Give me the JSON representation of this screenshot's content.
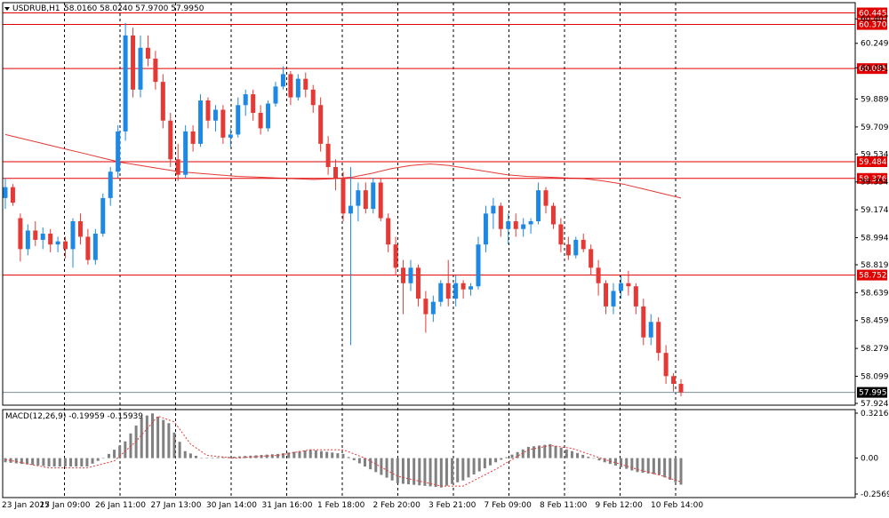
{
  "window": {
    "symbol_label": "USDRUB,H1",
    "ohlc": "58.0160 58.0240 57.9700 57.9950",
    "macd_label": "MACD(12,26,9) -0.19959 -0.15939"
  },
  "chart_data": {
    "type": "candlestick",
    "symbol": "USDRUB",
    "timeframe": "H1",
    "price_axis": {
      "range": [
        57.924,
        60.5
      ],
      "ticks": [
        "60.4070",
        "60.2490",
        "60.0910",
        "59.8890",
        "59.7090",
        "59.5340",
        "59.3540",
        "59.1740",
        "58.9940",
        "58.8190",
        "58.6390",
        "58.4590",
        "58.2790",
        "58.0990",
        "57.9240"
      ]
    },
    "horizontal_levels": [
      {
        "value": 60.4454,
        "label": "60.4454",
        "color": "#e00000"
      },
      {
        "value": 60.3706,
        "label": "60.3706",
        "color": "#e00000"
      },
      {
        "value": 60.0859,
        "label": "60.0859",
        "color": "#e00000"
      },
      {
        "value": 59.4845,
        "label": "59.4845",
        "color": "#e00000"
      },
      {
        "value": 59.3767,
        "label": "59.3767",
        "color": "#e00000"
      },
      {
        "value": 58.7526,
        "label": "58.7526",
        "color": "#e00000"
      }
    ],
    "current_price": {
      "value": 57.995,
      "label": "57.9950",
      "color": "#000000"
    },
    "time_labels": [
      "23 Jan 2017",
      "25 Jan 09:00",
      "26 Jan 11:00",
      "27 Jan 13:00",
      "30 Jan 14:00",
      "31 Jan 16:00",
      "1 Feb 18:00",
      "2 Feb 20:00",
      "3 Feb 21:00",
      "7 Feb 09:00",
      "8 Feb 11:00",
      "9 Feb 12:00",
      "10 Feb 14:00"
    ],
    "colors": {
      "up": "#1e88e5",
      "down": "#e53935",
      "ma": "#e53935",
      "macd_hist": "#808080",
      "macd_signal": "#e53935"
    },
    "moving_average": [
      59.66,
      59.63,
      59.6,
      59.57,
      59.54,
      59.51,
      59.48,
      59.46,
      59.44,
      59.42,
      59.41,
      59.4,
      59.39,
      59.385,
      59.38,
      59.375,
      59.37,
      59.375,
      59.385,
      59.41,
      59.44,
      59.46,
      59.47,
      59.46,
      59.44,
      59.42,
      59.4,
      59.39,
      59.385,
      59.38,
      59.375,
      59.36,
      59.34,
      59.31,
      59.28,
      59.25
    ],
    "macd": {
      "zero_line": 0.0,
      "range": [
        -0.2569,
        0.3217
      ],
      "ticks": [
        "0.32169",
        "0.00",
        "-0.25693"
      ],
      "histogram_points": [
        [
          0,
          -0.03
        ],
        [
          8,
          -0.06
        ],
        [
          15,
          -0.06
        ],
        [
          18,
          0.0
        ],
        [
          22,
          0.12
        ],
        [
          25,
          0.29
        ],
        [
          27,
          0.32
        ],
        [
          30,
          0.25
        ],
        [
          33,
          0.05
        ],
        [
          36,
          0.0
        ],
        [
          42,
          0.01
        ],
        [
          50,
          0.03
        ],
        [
          56,
          0.06
        ],
        [
          62,
          0.03
        ],
        [
          66,
          -0.06
        ],
        [
          72,
          -0.18
        ],
        [
          80,
          -0.21
        ],
        [
          84,
          -0.16
        ],
        [
          90,
          -0.03
        ],
        [
          96,
          0.08
        ],
        [
          100,
          0.1
        ],
        [
          104,
          0.05
        ],
        [
          110,
          -0.03
        ],
        [
          116,
          -0.1
        ],
        [
          120,
          -0.12
        ],
        [
          124,
          -0.19
        ]
      ],
      "signal_points": [
        [
          0,
          -0.01
        ],
        [
          8,
          -0.07
        ],
        [
          15,
          -0.07
        ],
        [
          20,
          -0.02
        ],
        [
          24,
          0.12
        ],
        [
          28,
          0.3
        ],
        [
          31,
          0.26
        ],
        [
          34,
          0.1
        ],
        [
          37,
          0.02
        ],
        [
          42,
          0.0
        ],
        [
          50,
          0.02
        ],
        [
          56,
          0.06
        ],
        [
          62,
          0.06
        ],
        [
          66,
          0.0
        ],
        [
          72,
          -0.13
        ],
        [
          80,
          -0.2
        ],
        [
          84,
          -0.2
        ],
        [
          90,
          -0.08
        ],
        [
          96,
          0.06
        ],
        [
          100,
          0.09
        ],
        [
          104,
          0.07
        ],
        [
          110,
          -0.01
        ],
        [
          116,
          -0.08
        ],
        [
          120,
          -0.12
        ],
        [
          124,
          -0.17
        ]
      ]
    },
    "candles": [
      {
        "o": 59.25,
        "h": 59.38,
        "l": 59.18,
        "c": 59.32
      },
      {
        "o": 59.32,
        "h": 59.34,
        "l": 59.2,
        "c": 59.22
      },
      {
        "o": 59.12,
        "h": 59.15,
        "l": 58.84,
        "c": 58.92
      },
      {
        "o": 58.92,
        "h": 59.08,
        "l": 58.88,
        "c": 59.04
      },
      {
        "o": 59.04,
        "h": 59.1,
        "l": 58.94,
        "c": 58.98
      },
      {
        "o": 58.98,
        "h": 59.06,
        "l": 58.92,
        "c": 59.02
      },
      {
        "o": 59.02,
        "h": 59.05,
        "l": 58.9,
        "c": 58.95
      },
      {
        "o": 58.95,
        "h": 59.0,
        "l": 58.9,
        "c": 58.97
      },
      {
        "o": 58.97,
        "h": 59.0,
        "l": 58.86,
        "c": 58.92
      },
      {
        "o": 58.92,
        "h": 59.12,
        "l": 58.8,
        "c": 59.1
      },
      {
        "o": 59.1,
        "h": 59.15,
        "l": 58.95,
        "c": 59.0
      },
      {
        "o": 59.0,
        "h": 59.05,
        "l": 58.82,
        "c": 58.85
      },
      {
        "o": 58.85,
        "h": 59.05,
        "l": 58.82,
        "c": 59.02
      },
      {
        "o": 59.02,
        "h": 59.28,
        "l": 59.0,
        "c": 59.25
      },
      {
        "o": 59.25,
        "h": 59.45,
        "l": 59.2,
        "c": 59.42
      },
      {
        "o": 59.42,
        "h": 59.72,
        "l": 59.38,
        "c": 59.68
      },
      {
        "o": 59.68,
        "h": 60.38,
        "l": 59.62,
        "c": 60.3
      },
      {
        "o": 60.3,
        "h": 60.35,
        "l": 59.9,
        "c": 59.95
      },
      {
        "o": 59.95,
        "h": 60.3,
        "l": 59.9,
        "c": 60.22
      },
      {
        "o": 60.22,
        "h": 60.3,
        "l": 60.1,
        "c": 60.15
      },
      {
        "o": 60.15,
        "h": 60.2,
        "l": 59.95,
        "c": 60.0
      },
      {
        "o": 60.0,
        "h": 60.05,
        "l": 59.7,
        "c": 59.75
      },
      {
        "o": 59.75,
        "h": 59.8,
        "l": 59.45,
        "c": 59.5
      },
      {
        "o": 59.5,
        "h": 59.6,
        "l": 59.36,
        "c": 59.4
      },
      {
        "o": 59.4,
        "h": 59.72,
        "l": 59.38,
        "c": 59.68
      },
      {
        "o": 59.68,
        "h": 59.72,
        "l": 59.55,
        "c": 59.6
      },
      {
        "o": 59.6,
        "h": 59.92,
        "l": 59.58,
        "c": 59.88
      },
      {
        "o": 59.88,
        "h": 59.9,
        "l": 59.7,
        "c": 59.75
      },
      {
        "o": 59.75,
        "h": 59.85,
        "l": 59.68,
        "c": 59.82
      },
      {
        "o": 59.82,
        "h": 59.85,
        "l": 59.6,
        "c": 59.64
      },
      {
        "o": 59.64,
        "h": 59.7,
        "l": 59.58,
        "c": 59.66
      },
      {
        "o": 59.66,
        "h": 59.9,
        "l": 59.64,
        "c": 59.85
      },
      {
        "o": 59.85,
        "h": 59.95,
        "l": 59.78,
        "c": 59.92
      },
      {
        "o": 59.92,
        "h": 59.95,
        "l": 59.75,
        "c": 59.8
      },
      {
        "o": 59.8,
        "h": 59.85,
        "l": 59.66,
        "c": 59.7
      },
      {
        "o": 59.7,
        "h": 59.88,
        "l": 59.68,
        "c": 59.86
      },
      {
        "o": 59.86,
        "h": 60.0,
        "l": 59.84,
        "c": 59.97
      },
      {
        "o": 59.97,
        "h": 60.1,
        "l": 59.95,
        "c": 60.05
      },
      {
        "o": 60.05,
        "h": 60.07,
        "l": 59.85,
        "c": 59.9
      },
      {
        "o": 59.9,
        "h": 60.05,
        "l": 59.88,
        "c": 60.02
      },
      {
        "o": 60.02,
        "h": 60.06,
        "l": 59.9,
        "c": 59.95
      },
      {
        "o": 59.95,
        "h": 59.98,
        "l": 59.8,
        "c": 59.85
      },
      {
        "o": 59.85,
        "h": 59.9,
        "l": 59.55,
        "c": 59.6
      },
      {
        "o": 59.6,
        "h": 59.65,
        "l": 59.4,
        "c": 59.45
      },
      {
        "o": 59.45,
        "h": 59.5,
        "l": 59.3,
        "c": 59.38
      },
      {
        "o": 59.38,
        "h": 59.42,
        "l": 59.1,
        "c": 59.15
      },
      {
        "o": 59.15,
        "h": 59.45,
        "l": 58.3,
        "c": 59.2
      },
      {
        "o": 59.2,
        "h": 59.35,
        "l": 59.1,
        "c": 59.3
      },
      {
        "o": 59.3,
        "h": 59.35,
        "l": 59.15,
        "c": 59.18
      },
      {
        "o": 59.18,
        "h": 59.38,
        "l": 59.15,
        "c": 59.35
      },
      {
        "o": 59.35,
        "h": 59.38,
        "l": 59.1,
        "c": 59.12
      },
      {
        "o": 59.12,
        "h": 59.15,
        "l": 58.9,
        "c": 58.95
      },
      {
        "o": 58.95,
        "h": 59.0,
        "l": 58.75,
        "c": 58.8
      },
      {
        "o": 58.8,
        "h": 58.85,
        "l": 58.5,
        "c": 58.7
      },
      {
        "o": 58.7,
        "h": 58.85,
        "l": 58.65,
        "c": 58.8
      },
      {
        "o": 58.8,
        "h": 58.82,
        "l": 58.55,
        "c": 58.6
      },
      {
        "o": 58.6,
        "h": 58.65,
        "l": 58.38,
        "c": 58.5
      },
      {
        "o": 58.5,
        "h": 58.62,
        "l": 58.45,
        "c": 58.58
      },
      {
        "o": 58.58,
        "h": 58.72,
        "l": 58.55,
        "c": 58.7
      },
      {
        "o": 58.7,
        "h": 58.85,
        "l": 58.55,
        "c": 58.6
      },
      {
        "o": 58.6,
        "h": 58.75,
        "l": 58.55,
        "c": 58.7
      },
      {
        "o": 58.7,
        "h": 58.72,
        "l": 58.6,
        "c": 58.66
      },
      {
        "o": 58.66,
        "h": 58.7,
        "l": 58.62,
        "c": 58.68
      },
      {
        "o": 58.68,
        "h": 59.0,
        "l": 58.66,
        "c": 58.95
      },
      {
        "o": 58.95,
        "h": 59.2,
        "l": 58.9,
        "c": 59.15
      },
      {
        "o": 59.15,
        "h": 59.25,
        "l": 59.05,
        "c": 59.2
      },
      {
        "o": 59.2,
        "h": 59.22,
        "l": 59.0,
        "c": 59.05
      },
      {
        "o": 59.05,
        "h": 59.15,
        "l": 58.95,
        "c": 59.1
      },
      {
        "o": 59.1,
        "h": 59.15,
        "l": 59.0,
        "c": 59.05
      },
      {
        "o": 59.05,
        "h": 59.12,
        "l": 59.0,
        "c": 59.08
      },
      {
        "o": 59.08,
        "h": 59.12,
        "l": 59.02,
        "c": 59.1
      },
      {
        "o": 59.1,
        "h": 59.35,
        "l": 59.08,
        "c": 59.3
      },
      {
        "o": 59.3,
        "h": 59.32,
        "l": 59.15,
        "c": 59.2
      },
      {
        "o": 59.2,
        "h": 59.22,
        "l": 59.05,
        "c": 59.08
      },
      {
        "o": 59.08,
        "h": 59.12,
        "l": 58.9,
        "c": 58.95
      },
      {
        "o": 58.95,
        "h": 59.0,
        "l": 58.85,
        "c": 58.88
      },
      {
        "o": 58.88,
        "h": 59.0,
        "l": 58.86,
        "c": 58.98
      },
      {
        "o": 58.98,
        "h": 59.02,
        "l": 58.9,
        "c": 58.92
      },
      {
        "o": 58.92,
        "h": 58.95,
        "l": 58.75,
        "c": 58.8
      },
      {
        "o": 58.8,
        "h": 58.85,
        "l": 58.62,
        "c": 58.7
      },
      {
        "o": 58.7,
        "h": 58.72,
        "l": 58.5,
        "c": 58.55
      },
      {
        "o": 58.55,
        "h": 58.7,
        "l": 58.5,
        "c": 58.65
      },
      {
        "o": 58.65,
        "h": 58.75,
        "l": 58.6,
        "c": 58.7
      },
      {
        "o": 58.7,
        "h": 58.78,
        "l": 58.62,
        "c": 58.68
      },
      {
        "o": 58.68,
        "h": 58.7,
        "l": 58.5,
        "c": 58.55
      },
      {
        "o": 58.55,
        "h": 58.6,
        "l": 58.3,
        "c": 58.35
      },
      {
        "o": 58.35,
        "h": 58.5,
        "l": 58.3,
        "c": 58.45
      },
      {
        "o": 58.45,
        "h": 58.48,
        "l": 58.2,
        "c": 58.25
      },
      {
        "o": 58.25,
        "h": 58.3,
        "l": 58.05,
        "c": 58.1
      },
      {
        "o": 58.1,
        "h": 58.12,
        "l": 58.0,
        "c": 58.05
      },
      {
        "o": 58.05,
        "h": 58.08,
        "l": 57.97,
        "c": 57.995
      }
    ]
  }
}
